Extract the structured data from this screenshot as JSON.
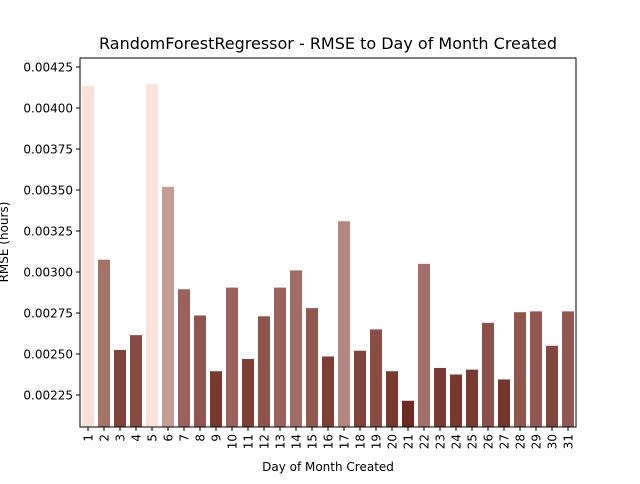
{
  "chart_data": {
    "type": "bar",
    "title": "RandomForestRegressor - RMSE to Day of Month Created",
    "xlabel": "Day of Month Created",
    "ylabel": "RMSE (hours)",
    "categories": [
      "1",
      "2",
      "3",
      "4",
      "5",
      "6",
      "7",
      "8",
      "9",
      "10",
      "11",
      "12",
      "13",
      "14",
      "15",
      "16",
      "17",
      "18",
      "19",
      "20",
      "21",
      "22",
      "23",
      "24",
      "25",
      "26",
      "27",
      "28",
      "29",
      "30",
      "31"
    ],
    "values": [
      0.004135,
      0.003075,
      0.002525,
      0.002615,
      0.004145,
      0.00352,
      0.002895,
      0.002735,
      0.002395,
      0.002905,
      0.00247,
      0.00273,
      0.002905,
      0.00301,
      0.00278,
      0.002485,
      0.00331,
      0.00252,
      0.00265,
      0.002395,
      0.002215,
      0.00305,
      0.002415,
      0.002375,
      0.002405,
      0.00269,
      0.002345,
      0.002755,
      0.00276,
      0.00255,
      0.00276
    ],
    "ylim": [
      0.002055,
      0.004305
    ],
    "yticks": [
      "0.00225",
      "0.00250",
      "0.00275",
      "0.00300",
      "0.00325",
      "0.00350",
      "0.00375",
      "0.00400",
      "0.00425"
    ],
    "ytick_values": [
      0.00225,
      0.0025,
      0.00275,
      0.003,
      0.00325,
      0.0035,
      0.00375,
      0.004,
      0.00425
    ],
    "colors": {
      "palette_light": "#fbe2dc",
      "palette_dark": "#6e2a22"
    },
    "grid": false
  }
}
